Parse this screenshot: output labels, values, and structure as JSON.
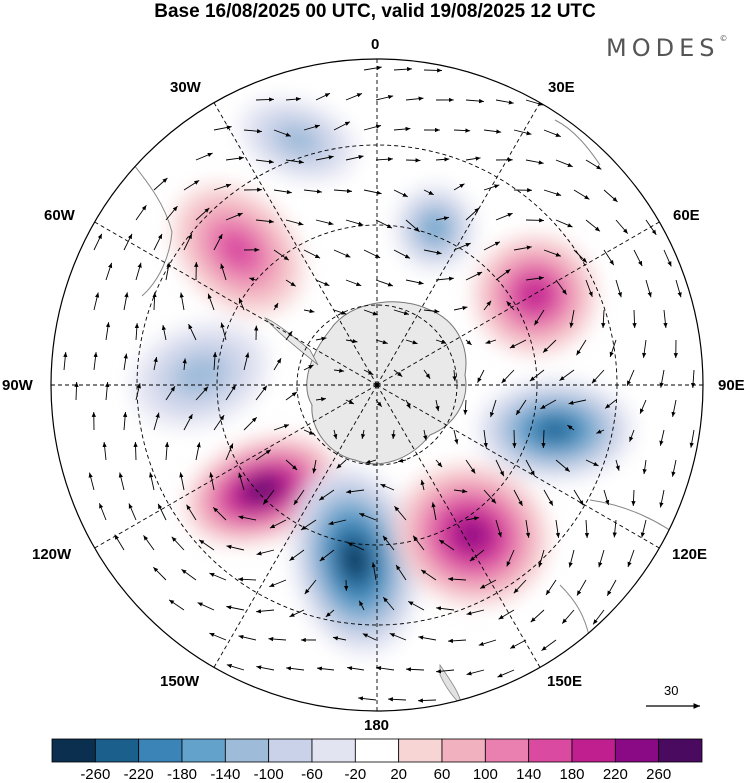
{
  "header": {
    "title": "Base 16/08/2025 00 UTC, valid 19/08/2025 12 UTC",
    "brand": "MODES",
    "brand_mark": "©"
  },
  "map": {
    "projection": "south-polar-stereographic",
    "longitude_labels": {
      "lon_0": "0",
      "lon_30e": "30E",
      "lon_60e": "60E",
      "lon_90e": "90E",
      "lon_120e": "120E",
      "lon_150e": "150E",
      "lon_180": "180",
      "lon_150w": "150W",
      "lon_120w": "120W",
      "lon_90w": "90W",
      "lon_60w": "60W",
      "lon_30w": "30W"
    },
    "reference_vector": {
      "label": "30"
    },
    "anomaly_centers": [
      {
        "name": "pos-60-120W",
        "value": 240
      },
      {
        "name": "neg-150W-180",
        "value": -240
      },
      {
        "name": "pos-150E-180",
        "value": 230
      },
      {
        "name": "neg-90-120E",
        "value": -220
      },
      {
        "name": "pos-60E",
        "value": 180
      },
      {
        "name": "pos-30-60W",
        "value": 150
      },
      {
        "name": "neg-30E",
        "value": -140
      },
      {
        "name": "neg-90W",
        "value": -110
      },
      {
        "name": "neg-0-30W",
        "value": -110
      }
    ]
  },
  "colorbar": {
    "labels": [
      "-260",
      "-220",
      "-180",
      "-140",
      "-100",
      "-60",
      "-20",
      "20",
      "60",
      "100",
      "140",
      "180",
      "220",
      "260"
    ],
    "colors": [
      "#0a2f4f",
      "#1b5f8c",
      "#3a84b8",
      "#63a2cb",
      "#9ebbd9",
      "#c9d2e8",
      "#e3e4f2",
      "#ffffff",
      "#f7d5d5",
      "#f2b1bf",
      "#ea80b0",
      "#d94aa0",
      "#c01f8f",
      "#8a0a86",
      "#4a0a60"
    ]
  },
  "continent": {
    "fill": "#e9e9e9",
    "coast": "#777777"
  }
}
